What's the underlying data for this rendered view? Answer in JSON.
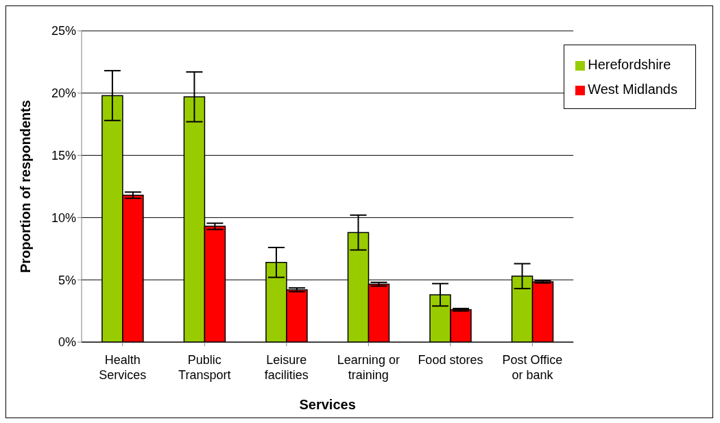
{
  "chart_data": {
    "type": "bar",
    "xlabel": "Services",
    "ylabel": "Proportion of respondents",
    "categories": [
      "Health Services",
      "Public Transport",
      "Leisure facilities",
      "Learning or training",
      "Food stores",
      "Post Office or bank"
    ],
    "series": [
      {
        "name": "Herefordshire",
        "color": "#99cc00",
        "values": [
          19.8,
          19.7,
          6.4,
          8.8,
          3.8,
          5.3
        ],
        "errors": [
          2.0,
          2.0,
          1.2,
          1.4,
          0.9,
          1.0
        ]
      },
      {
        "name": "West Midlands",
        "color": "#ff0000",
        "values": [
          11.8,
          9.3,
          4.2,
          4.65,
          2.6,
          4.85
        ],
        "errors": [
          0.25,
          0.25,
          0.15,
          0.15,
          0.1,
          0.1
        ]
      }
    ],
    "ylim": [
      0,
      25
    ],
    "yticks": [
      {
        "value": 0,
        "label": "0%"
      },
      {
        "value": 5,
        "label": "5%"
      },
      {
        "value": 10,
        "label": "10%"
      },
      {
        "value": 15,
        "label": "15%"
      },
      {
        "value": 20,
        "label": "20%"
      },
      {
        "value": 25,
        "label": "25%"
      }
    ],
    "grid": "y",
    "legend": "top right"
  }
}
